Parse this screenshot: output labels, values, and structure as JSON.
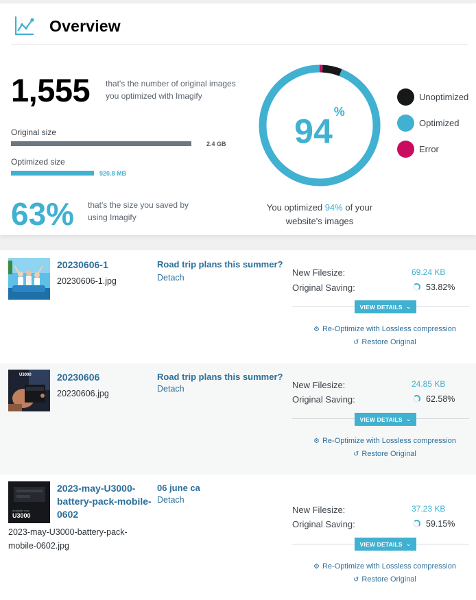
{
  "overview": {
    "title": "Overview",
    "count": "1,555",
    "count_desc": "that's the number of original images you optimized with Imagify",
    "original_size_label": "Original size",
    "original_size_value": "2.4 GB",
    "optimized_size_label": "Optimized size",
    "optimized_size_value": "920.8 MB",
    "saved_pct": "63%",
    "saved_desc": "that's the size you saved by using Imagify",
    "donut_value": "94",
    "donut_unit": "%",
    "donut_fraction": {
      "optimized": 0.94,
      "unoptimized": 0.052,
      "error": 0.008
    },
    "caption_pre": "You optimized ",
    "caption_pct": "94%",
    "caption_post": " of your website's images",
    "legend": [
      {
        "label": "Unoptimized",
        "color": "#16181a"
      },
      {
        "label": "Optimized",
        "color": "#40b1d0"
      },
      {
        "label": "Error",
        "color": "#c90c60"
      }
    ]
  },
  "rows": [
    {
      "title": "20230606-1",
      "file": "20230606-1.jpg",
      "post": "Road trip plans this summer?",
      "detach": "Detach",
      "new_filesize_label": "New Filesize:",
      "new_filesize": "69.24 KB",
      "saving_label": "Original Saving:",
      "saving": "53.82%",
      "view_details": "VIEW DETAILS",
      "reoptimize": "Re-Optimize with Lossless compression",
      "restore": "Restore Original"
    },
    {
      "title": "20230606",
      "file": "20230606.jpg",
      "post": "Road trip plans this summer?",
      "detach": "Detach",
      "new_filesize_label": "New Filesize:",
      "new_filesize": "24.85 KB",
      "saving_label": "Original Saving:",
      "saving": "62.58%",
      "view_details": "VIEW DETAILS",
      "reoptimize": "Re-Optimize with Lossless compression",
      "restore": "Restore Original",
      "thumb_text": "U3000"
    },
    {
      "title_lines": [
        "2023-may-U3000-",
        "battery-pack-mobile-",
        "0602"
      ],
      "file_lines": [
        "2023-may-U3000-battery-pack-",
        "mobile-0602.jpg"
      ],
      "post": "06 june ca",
      "detach": "Detach",
      "new_filesize_label": "New Filesize:",
      "new_filesize": "37.23 KB",
      "saving_label": "Original Saving:",
      "saving": "59.15%",
      "view_details": "VIEW DETAILS",
      "reoptimize": "Re-Optimize with Lossless compression",
      "restore": "Restore Original",
      "thumb_text": "U3000"
    }
  ]
}
